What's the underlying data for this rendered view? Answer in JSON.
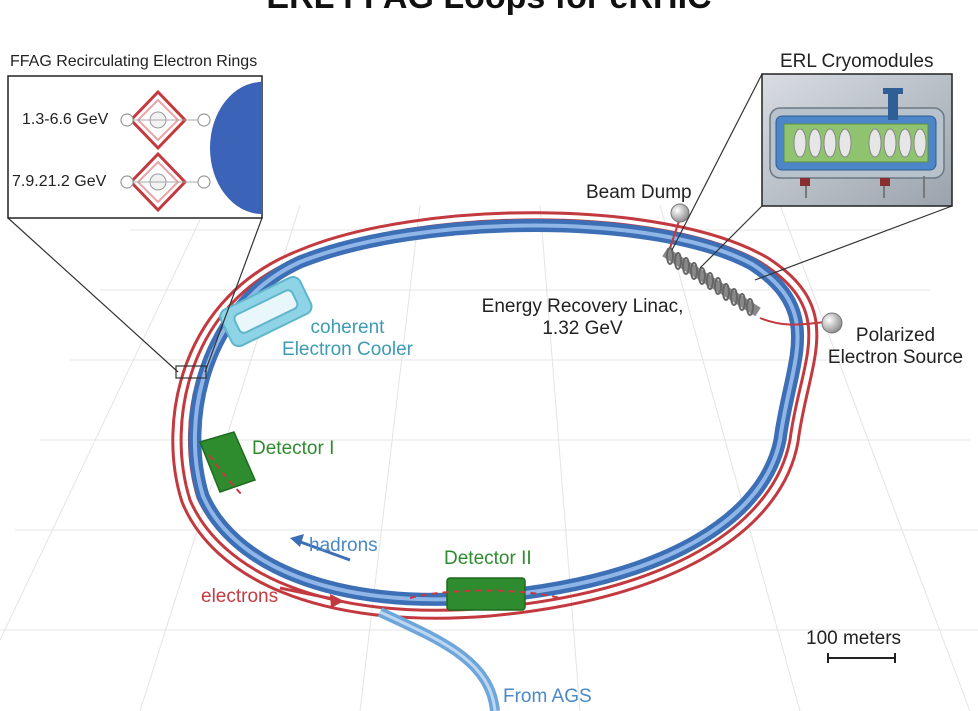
{
  "title": "ERL FFAG Loops for eRHIC",
  "inset_ffag": {
    "title": "FFAG Recirculating Electron Rings",
    "ring1_energy": "1.3-6.6 GeV",
    "ring2_energy": "7.9.21.2 GeV"
  },
  "inset_erl": {
    "title": "ERL Cryomodules"
  },
  "labels": {
    "beam_dump": "Beam Dump",
    "erl_line1": "Energy Recovery Linac,",
    "erl_line2": "1.32 GeV",
    "cooler_line1": "coherent",
    "cooler_line2": "Electron Cooler",
    "source_line1": "Polarized",
    "source_line2": "Electron Source",
    "detector1": "Detector I",
    "detector2": "Detector II",
    "hadrons": "hadrons",
    "electrons": "electrons",
    "scale": "100 meters",
    "from_ags": "From AGS"
  },
  "colors": {
    "hadron_ring": "#4f7fc4",
    "electron_ring": "#c23a3f",
    "cooler": "#8fd3e6",
    "detector": "#2e8b2e",
    "inset_half_disk": "#3b63b8"
  }
}
